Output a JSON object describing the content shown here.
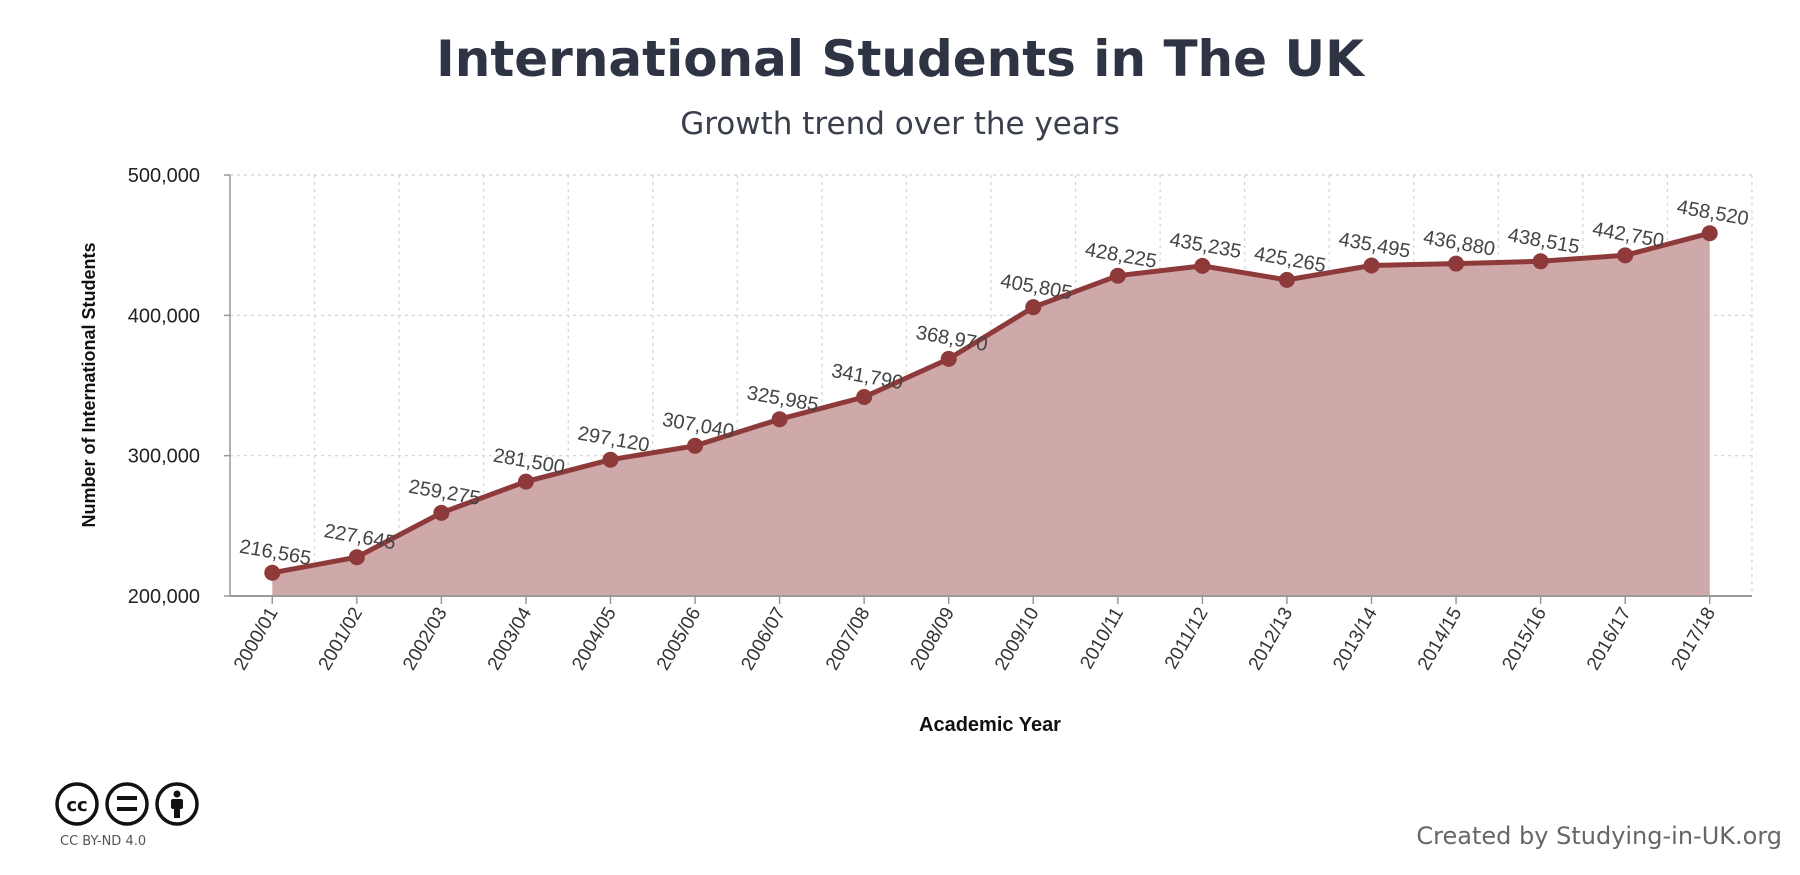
{
  "chart_data": {
    "type": "area",
    "title": "International Students in The UK",
    "subtitle": "Growth trend over the years",
    "xlabel": "Academic Year",
    "ylabel": "Number of International Students",
    "ylim": [
      200000,
      500000
    ],
    "yticks": [
      200000,
      300000,
      400000,
      500000
    ],
    "ytick_labels": [
      "200,000",
      "300,000",
      "400,000",
      "500,000"
    ],
    "grid": true,
    "categories": [
      "2000/01",
      "2001/02",
      "2002/03",
      "2003/04",
      "2004/05",
      "2005/06",
      "2006/07",
      "2007/08",
      "2008/09",
      "2009/10",
      "2010/11",
      "2011/12",
      "2012/13",
      "2013/14",
      "2014/15",
      "2015/16",
      "2016/17",
      "2017/18"
    ],
    "values": [
      216565,
      227645,
      259275,
      281500,
      297120,
      307040,
      325985,
      341790,
      368970,
      405805,
      428225,
      435235,
      425265,
      435495,
      436880,
      438515,
      442750,
      458520
    ],
    "data_labels": [
      "216,565",
      "227,645",
      "259,275",
      "281,500",
      "297,120",
      "307,040",
      "325,985",
      "341,790",
      "368,970",
      "405,805",
      "428,225",
      "435,235",
      "425,265",
      "435,495",
      "436,880",
      "438,515",
      "442,750",
      "458,520"
    ],
    "colors": {
      "line": "#8e3a3a",
      "fill": "#cfa9a9"
    }
  },
  "license": {
    "label": "CC BY-ND 4.0"
  },
  "credit": "Created by Studying-in-UK.org"
}
